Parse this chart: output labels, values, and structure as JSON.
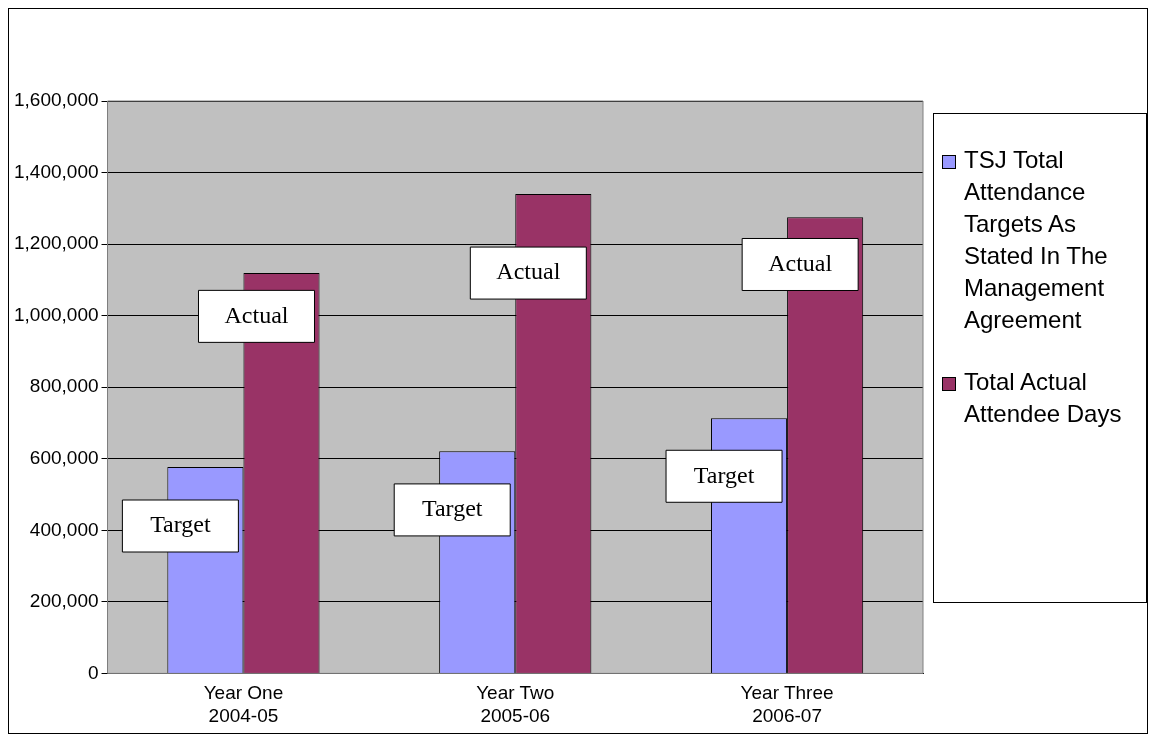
{
  "chart_data": {
    "type": "bar",
    "categories": [
      "Year One\n2004-05",
      "Year Two\n2005-06",
      "Year Three\n2006-07"
    ],
    "series": [
      {
        "name": "TSJ Total Attendance Targets As Stated In The Management Agreement",
        "color": "#9999ff",
        "values": [
          577000,
          621000,
          713000
        ]
      },
      {
        "name": "Total Actual Attendee Days",
        "color": "#993366",
        "values": [
          1119000,
          1340000,
          1275000
        ]
      }
    ],
    "ylim": [
      0,
      1600000
    ],
    "yticks": [
      0,
      {
        "value": 200000,
        "label": "200,000"
      },
      {
        "value": 400000,
        "label": "400,000"
      },
      {
        "value": 600000,
        "label": "600,000"
      },
      {
        "value": 800000,
        "label": "800,000"
      },
      {
        "value": 1000000,
        "label": "1,000,000"
      },
      {
        "value": 1200000,
        "label": "1,200,000"
      },
      {
        "value": 1400000,
        "label": "1,400,000"
      },
      {
        "value": 1600000,
        "label": "1,600,000"
      }
    ],
    "grid": "y",
    "legend": "right",
    "annotations": [
      {
        "text": "Target",
        "x": "Year One\n2004-05",
        "y": 412000
      },
      {
        "text": "Actual",
        "x": "Year One\n2004-05",
        "y": 998000
      },
      {
        "text": "Target",
        "x": "Year Two\n2005-06",
        "y": 457000
      },
      {
        "text": "Actual",
        "x": "Year Two\n2005-06",
        "y": 1119000
      },
      {
        "text": "Target",
        "x": "Year Three\n2006-07",
        "y": 551000
      },
      {
        "text": "Actual",
        "x": "Year Three\n2006-07",
        "y": 1143000
      }
    ]
  }
}
